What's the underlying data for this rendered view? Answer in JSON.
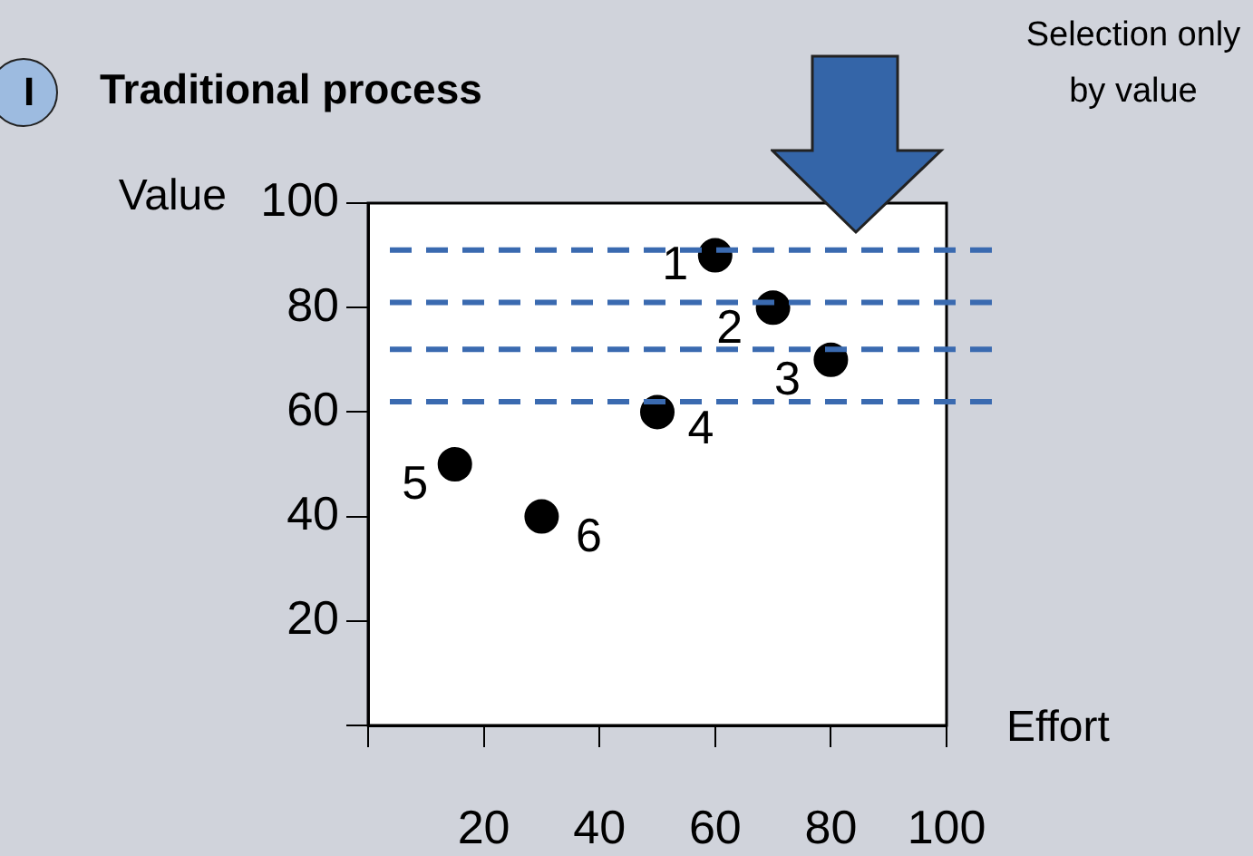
{
  "chart_data": {
    "type": "scatter",
    "title": "Traditional process",
    "xlabel": "Effort",
    "ylabel": "Value",
    "annotations": [
      "I",
      "Selection only by value",
      {
        "text": "1",
        "x": 60,
        "y": 90
      },
      {
        "text": "2",
        "x": 70,
        "y": 80
      },
      {
        "text": "3",
        "x": 80,
        "y": 70
      },
      {
        "text": "4",
        "x": 50,
        "y": 60
      },
      {
        "text": "5",
        "x": 15,
        "y": 50
      },
      {
        "text": "6",
        "x": 30,
        "y": 40
      }
    ],
    "x": [
      60,
      70,
      80,
      50,
      15,
      30
    ],
    "values": [
      90,
      80,
      70,
      60,
      50,
      40
    ],
    "color": "#000000",
    "marker": "circle",
    "xlim": [
      0,
      100
    ],
    "xticks": [
      {
        "value": 0,
        "label": null
      },
      20,
      40,
      60,
      80,
      100
    ],
    "ylim": [
      0,
      100
    ],
    "yticks": [
      {
        "value": 0,
        "label": null
      },
      20,
      40,
      60,
      80,
      100
    ],
    "ref_lines": [
      {
        "axis": "y",
        "value": 91,
        "color": "#3a6ab0",
        "line_style": "dashed"
      },
      {
        "axis": "y",
        "value": 81,
        "color": "#3a6ab0",
        "line_style": "dashed"
      },
      {
        "axis": "y",
        "value": 72,
        "color": "#3a6ab0",
        "line_style": "dashed"
      },
      {
        "axis": "y",
        "value": 62,
        "color": "#3a6ab0",
        "line_style": "dashed"
      }
    ],
    "grid": false,
    "legend": false
  }
}
